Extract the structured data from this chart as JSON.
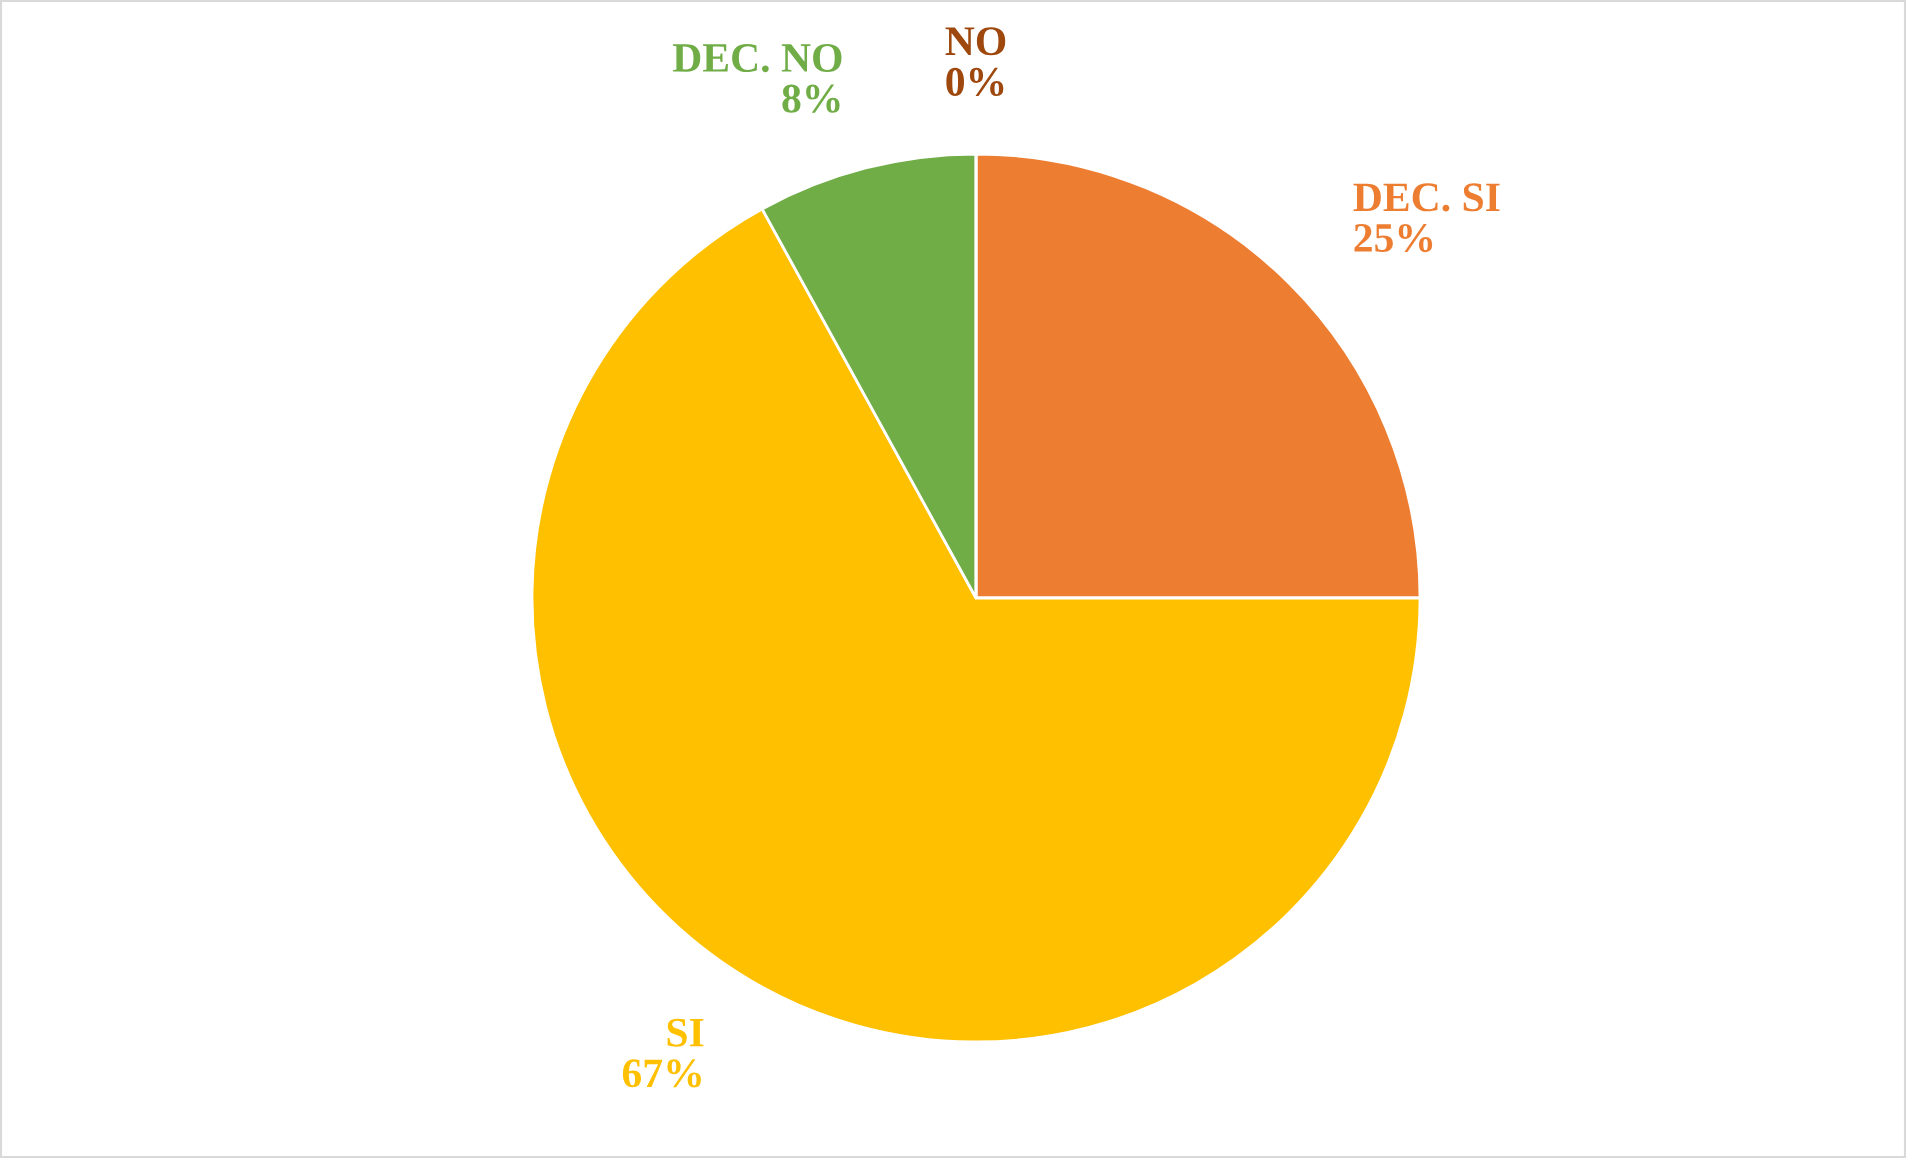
{
  "chart_data": {
    "type": "pie",
    "categories": [
      "DEC. SI",
      "SI",
      "DEC. NO",
      "NO"
    ],
    "values": [
      25,
      67,
      8,
      0
    ],
    "colors": [
      "#ed7d31",
      "#ffc000",
      "#70ad47",
      "#9e480e"
    ],
    "value_labels": [
      "25%",
      "67%",
      "8%",
      "0%"
    ],
    "legend": false
  }
}
